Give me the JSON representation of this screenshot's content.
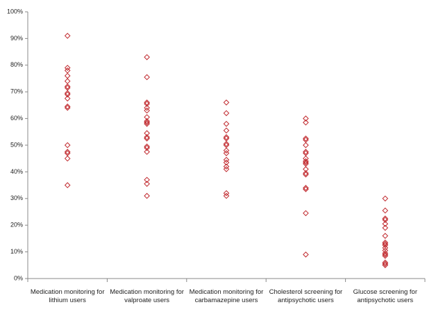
{
  "chart_data": {
    "type": "strip",
    "categories": [
      "Medication monitoring for lithium users",
      "Medication monitoring for valproate users",
      "Medication monitoring for carbamazepine users",
      "Cholesterol screening for antipsychotic users",
      "Glucose screening for antipsychotic users"
    ],
    "values": [
      [
        91,
        79,
        78,
        76,
        74,
        72,
        71.5,
        69.5,
        69,
        67.5,
        64.5,
        64,
        50,
        47.5,
        47,
        45,
        35
      ],
      [
        83,
        75.5,
        66,
        65.5,
        64,
        63,
        60.5,
        59,
        58.5,
        58,
        54.5,
        53,
        52.5,
        49.5,
        49,
        47.5,
        37,
        35.5,
        31
      ],
      [
        66,
        62,
        58,
        55.5,
        53,
        52.5,
        50.5,
        50,
        48,
        47,
        44.5,
        43.5,
        42,
        41,
        32,
        31
      ],
      [
        60,
        58.5,
        52.5,
        52,
        50,
        47.5,
        47,
        45,
        44,
        43.5,
        43,
        41,
        39.5,
        39,
        34,
        33.5,
        24.5,
        9
      ],
      [
        30,
        25.5,
        22.5,
        22,
        20.5,
        19,
        16,
        13.5,
        13,
        12.5,
        11.5,
        10.5,
        9.5,
        9,
        8.5,
        6,
        5.5,
        5
      ]
    ],
    "color": "#c0282d",
    "ylim": [
      0,
      100
    ],
    "yticks": [
      {
        "value": 0,
        "label": "0%"
      },
      {
        "value": 10,
        "label": "10%"
      },
      {
        "value": 20,
        "label": "20%"
      },
      {
        "value": 30,
        "label": "30%"
      },
      {
        "value": 40,
        "label": "40%"
      },
      {
        "value": 50,
        "label": "50%"
      },
      {
        "value": 60,
        "label": "60%"
      },
      {
        "value": 70,
        "label": "70%"
      },
      {
        "value": 80,
        "label": "80%"
      },
      {
        "value": 90,
        "label": "90%"
      },
      {
        "value": 100,
        "label": "100%"
      }
    ]
  }
}
